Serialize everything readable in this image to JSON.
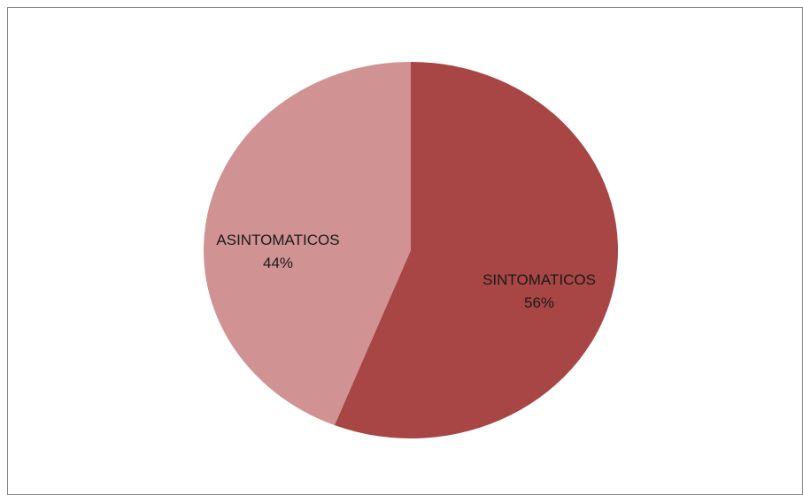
{
  "chart_data": {
    "type": "pie",
    "title": "",
    "slices": [
      {
        "label": "SINTOMATICOS",
        "value": 56,
        "display": "56%",
        "color": "#a84545"
      },
      {
        "label": "ASINTOMATICOS",
        "value": 44,
        "display": "44%",
        "color": "#d09292"
      }
    ],
    "start_angle_deg": 0,
    "direction": "clockwise",
    "labels_inside": true,
    "legend": "none"
  }
}
